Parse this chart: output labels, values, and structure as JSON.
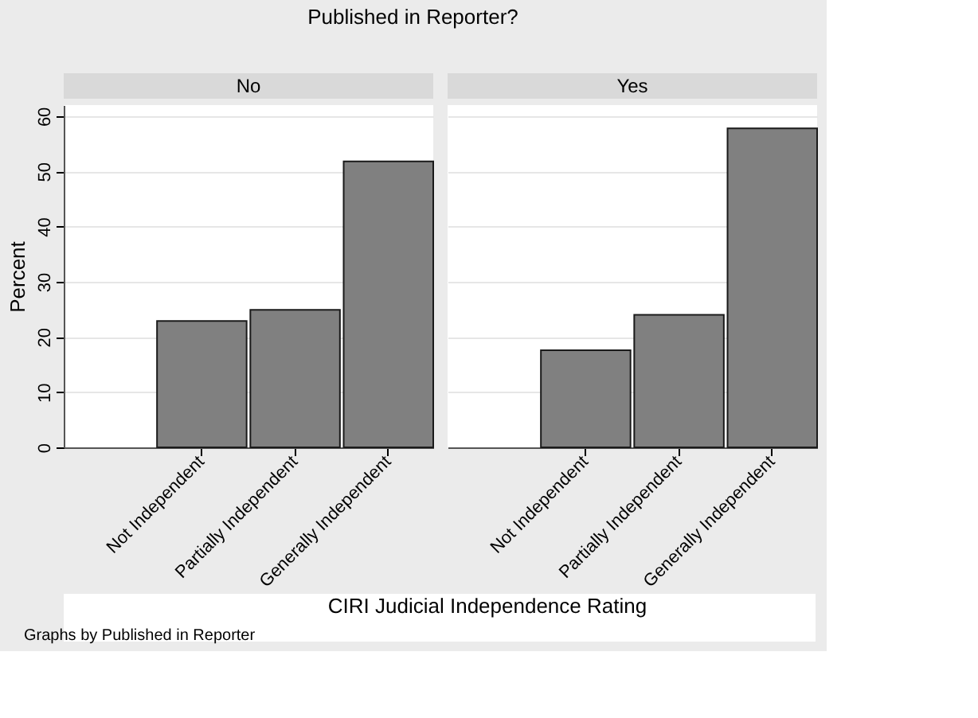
{
  "chart_data": [
    {
      "type": "bar",
      "title": "Published in Reporter?",
      "subtitle": "No",
      "ylabel": "Percent",
      "xlabel": "CIRI Judicial Independence Rating",
      "annotations": [
        "Graphs by Published in Reporter"
      ],
      "categories": [
        "Not Independent",
        "Partially Independent",
        "Generally Independent"
      ],
      "values": [
        22.9,
        24.9,
        51.8
      ],
      "color": "#808080",
      "ylim": [
        0,
        62
      ],
      "yticks": [
        0,
        10,
        20,
        30,
        40,
        50,
        60
      ],
      "grid": "y"
    },
    {
      "type": "bar",
      "subtitle": "Yes",
      "categories": [
        "Not Independent",
        "Partially Independent",
        "Generally Independent"
      ],
      "values": [
        17.6,
        24.0,
        57.8
      ],
      "color": "#808080",
      "ylim": [
        0,
        62
      ],
      "yticks": [
        0,
        10,
        20,
        30,
        40,
        50,
        60
      ],
      "grid": "y",
      "tick_labels": "x"
    }
  ]
}
